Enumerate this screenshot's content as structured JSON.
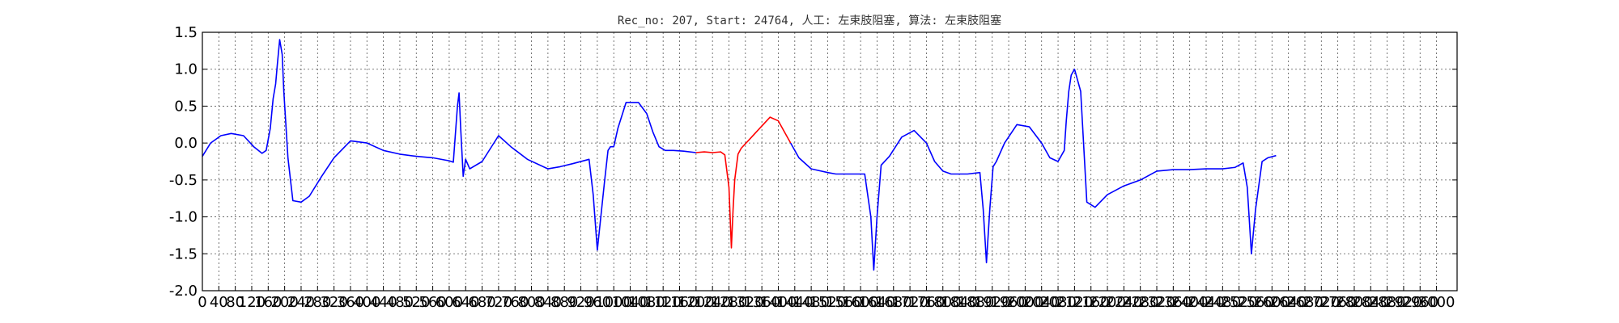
{
  "chart_data": {
    "type": "line",
    "title": "Rec_no: 207, Start: 24764, 人工: 左束肢阻塞, 算法: 左束肢阻塞",
    "xlabel": "",
    "ylabel": "",
    "xlim": [
      0,
      3050
    ],
    "ylim": [
      -2.0,
      1.5
    ],
    "grid": true,
    "y_ticks": [
      "1.5",
      "1.0",
      "0.5",
      "0.0",
      "-0.5",
      "-1.0",
      "-1.5",
      "-2.0"
    ],
    "x_ticks": [
      "0",
      "40",
      "80",
      "120",
      "160",
      "200",
      "240",
      "280",
      "320",
      "360",
      "400",
      "440",
      "480",
      "520",
      "560",
      "600",
      "640",
      "680",
      "720",
      "760",
      "800",
      "840",
      "880",
      "920",
      "960",
      "1000",
      "1040",
      "1080",
      "1120",
      "1160",
      "1200",
      "1240",
      "1280",
      "1320",
      "1360",
      "1400",
      "1440",
      "1480",
      "1520",
      "1560",
      "1600",
      "1640",
      "1680",
      "1720",
      "1760",
      "1800",
      "1840",
      "1880",
      "1920",
      "1960",
      "2000",
      "2040",
      "2080",
      "2120",
      "2160",
      "2200",
      "2240",
      "2280",
      "2320",
      "2360",
      "2400",
      "2440",
      "2480",
      "2520",
      "2560",
      "2600",
      "2640",
      "2680",
      "2720",
      "2760",
      "2800",
      "2840",
      "2880",
      "2920",
      "2960",
      "3000"
    ],
    "series": [
      {
        "color": "#0000ff",
        "x": [
          0,
          20,
          45,
          70,
          100,
          125,
          145,
          155,
          165,
          172,
          178,
          182,
          188,
          194,
          198,
          208,
          220,
          240,
          260,
          290,
          320,
          360,
          400,
          440,
          480,
          520,
          560,
          600,
          610,
          620,
          624,
          628,
          634,
          640,
          650,
          680,
          720,
          750,
          790,
          840,
          870,
          900,
          940,
          950,
          960,
          978,
          986,
          992,
          1000,
          1010,
          1030,
          1060,
          1080,
          1095,
          1110,
          1125,
          1145,
          1170,
          1200
        ],
        "y": [
          -0.18,
          0.0,
          0.1,
          0.13,
          0.1,
          -0.05,
          -0.14,
          -0.1,
          0.2,
          0.6,
          0.8,
          1.05,
          1.4,
          1.2,
          0.7,
          -0.2,
          -0.78,
          -0.8,
          -0.72,
          -0.45,
          -0.2,
          0.03,
          0.0,
          -0.1,
          -0.15,
          -0.18,
          -0.2,
          -0.24,
          -0.26,
          0.5,
          0.68,
          0.2,
          -0.45,
          -0.22,
          -0.35,
          -0.25,
          0.1,
          -0.05,
          -0.22,
          -0.35,
          -0.32,
          -0.28,
          -0.22,
          -0.7,
          -1.45,
          -0.5,
          -0.1,
          -0.05,
          -0.05,
          0.2,
          0.55,
          0.55,
          0.4,
          0.15,
          -0.05,
          -0.1,
          -0.1,
          -0.11,
          -0.13
        ]
      },
      {
        "color": "#ff0000",
        "x": [
          1200,
          1220,
          1240,
          1260,
          1270,
          1280,
          1286,
          1290,
          1294,
          1302,
          1310,
          1330,
          1360,
          1380,
          1400,
          1420,
          1430
        ],
        "y": [
          -0.13,
          -0.12,
          -0.13,
          -0.12,
          -0.16,
          -0.6,
          -1.42,
          -0.9,
          -0.5,
          -0.15,
          -0.07,
          0.05,
          0.23,
          0.35,
          0.3,
          0.1,
          0.0
        ]
      },
      {
        "color": "#0000ff",
        "x": [
          1430,
          1450,
          1480,
          1520,
          1540,
          1560,
          1580,
          1610,
          1625,
          1632,
          1640,
          1650,
          1670,
          1700,
          1730,
          1760,
          1780,
          1800,
          1820,
          1860,
          1890,
          1898,
          1906,
          1914,
          1922,
          1930,
          1950,
          1980,
          2010,
          2040,
          2060,
          2080,
          2095,
          2100,
          2106,
          2112,
          2120,
          2135,
          2150,
          2170,
          2200,
          2240,
          2280,
          2320,
          2360,
          2400,
          2440,
          2480,
          2510,
          2530,
          2540,
          2550,
          2560,
          2576,
          2590,
          2610
        ],
        "y": [
          0.0,
          -0.2,
          -0.35,
          -0.4,
          -0.42,
          -0.42,
          -0.42,
          -0.42,
          -1.0,
          -1.72,
          -1.0,
          -0.3,
          -0.18,
          0.08,
          0.17,
          0.0,
          -0.25,
          -0.38,
          -0.42,
          -0.42,
          -0.4,
          -0.9,
          -1.62,
          -0.9,
          -0.32,
          -0.25,
          0.0,
          0.25,
          0.22,
          0.0,
          -0.2,
          -0.25,
          -0.1,
          0.3,
          0.7,
          0.92,
          1.0,
          0.7,
          -0.8,
          -0.87,
          -0.7,
          -0.58,
          -0.5,
          -0.38,
          -0.36,
          -0.36,
          -0.35,
          -0.35,
          -0.33,
          -0.27,
          -0.6,
          -1.5,
          -0.9,
          -0.25,
          -0.2,
          -0.17
        ]
      }
    ]
  }
}
